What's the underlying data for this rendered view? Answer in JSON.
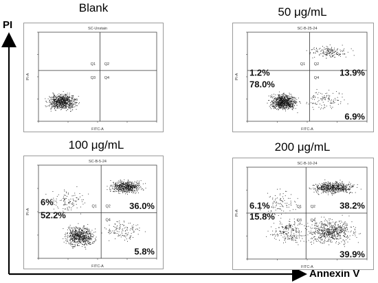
{
  "figure": {
    "y_axis_title": "PI",
    "x_axis_title": "Annexin V"
  },
  "chart_data": [
    {
      "type": "scatter",
      "title": "Blank",
      "plot_label": "SC-Unstain",
      "xlabel": "FITC-A",
      "ylabel": "PI-A",
      "quadrants": [
        {
          "name": "Q1",
          "label": "Q1",
          "percent": null
        },
        {
          "name": "Q2",
          "label": "Q2",
          "percent": null
        },
        {
          "name": "Q3",
          "label": "Q3",
          "percent": null
        },
        {
          "name": "Q4",
          "label": "Q4",
          "percent": null
        }
      ],
      "populations": [
        {
          "region": "Q3",
          "cx": 0.2,
          "cy": 0.22,
          "sx": 0.11,
          "sy": 0.08,
          "n": 750
        }
      ]
    },
    {
      "type": "scatter",
      "title": "50 μg/mL",
      "plot_label": "SC-B-25-24",
      "xlabel": "FITC-A",
      "ylabel": "PI-A",
      "quadrants": [
        {
          "name": "Q1",
          "label": "Q1",
          "percent": "1.2%"
        },
        {
          "name": "Q2",
          "label": "Q2",
          "percent": "13.9%"
        },
        {
          "name": "Q3",
          "label": "",
          "percent": "78.0%"
        },
        {
          "name": "Q4",
          "label": "Q4",
          "percent": "6.9%"
        }
      ],
      "populations": [
        {
          "region": "Q3",
          "cx": 0.3,
          "cy": 0.22,
          "sx": 0.1,
          "sy": 0.08,
          "n": 850
        },
        {
          "region": "Q2",
          "cx": 0.68,
          "cy": 0.78,
          "sx": 0.14,
          "sy": 0.06,
          "n": 170
        },
        {
          "region": "Q4",
          "cx": 0.65,
          "cy": 0.25,
          "sx": 0.16,
          "sy": 0.12,
          "n": 110
        }
      ]
    },
    {
      "type": "scatter",
      "title": "100 μg/mL",
      "plot_label": "SC-B-5-24",
      "xlabel": "FITC-A",
      "ylabel": "PI-A",
      "quadrants": [
        {
          "name": "Q1",
          "label": "Q1",
          "percent": "6%"
        },
        {
          "name": "Q2",
          "label": "Q2",
          "percent": "36.0%"
        },
        {
          "name": "Q3",
          "label": "",
          "percent": "52.2%"
        },
        {
          "name": "Q4",
          "label": "Q4",
          "percent": "5.8%"
        }
      ],
      "populations": [
        {
          "region": "Q3",
          "cx": 0.35,
          "cy": 0.24,
          "sx": 0.11,
          "sy": 0.1,
          "n": 650
        },
        {
          "region": "Q2",
          "cx": 0.74,
          "cy": 0.77,
          "sx": 0.12,
          "sy": 0.06,
          "n": 550
        },
        {
          "region": "Q1",
          "cx": 0.25,
          "cy": 0.62,
          "sx": 0.15,
          "sy": 0.12,
          "n": 110
        },
        {
          "region": "Q4",
          "cx": 0.72,
          "cy": 0.3,
          "sx": 0.15,
          "sy": 0.1,
          "n": 120
        }
      ]
    },
    {
      "type": "scatter",
      "title": "200 μg/mL",
      "plot_label": "SC-B-10-24",
      "xlabel": "FITC-A",
      "ylabel": "PI-A",
      "quadrants": [
        {
          "name": "Q1",
          "label": "Q1",
          "percent": "6.1%"
        },
        {
          "name": "Q2",
          "label": "Q2",
          "percent": "38.2%"
        },
        {
          "name": "Q3",
          "label": "Q3",
          "percent": "15.8%"
        },
        {
          "name": "Q4",
          "label": "Q4",
          "percent": "39.9%"
        }
      ],
      "populations": [
        {
          "region": "Q2",
          "cx": 0.72,
          "cy": 0.78,
          "sx": 0.16,
          "sy": 0.06,
          "n": 600
        },
        {
          "region": "Q4",
          "cx": 0.7,
          "cy": 0.3,
          "sx": 0.18,
          "sy": 0.12,
          "n": 600
        },
        {
          "region": "Q3",
          "cx": 0.35,
          "cy": 0.3,
          "sx": 0.14,
          "sy": 0.12,
          "n": 220
        },
        {
          "region": "Q1",
          "cx": 0.28,
          "cy": 0.62,
          "sx": 0.15,
          "sy": 0.12,
          "n": 100
        }
      ]
    }
  ]
}
